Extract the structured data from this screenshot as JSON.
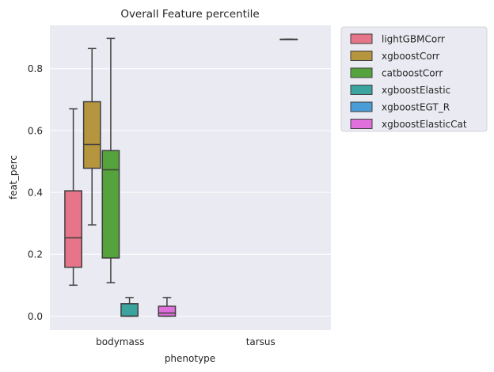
{
  "chart_data": {
    "type": "box",
    "title": "Overall Feature percentile",
    "xlabel": "phenotype",
    "ylabel": "feat_perc",
    "categories": [
      "bodymass",
      "tarsus"
    ],
    "ylim": [
      -0.045,
      0.94
    ],
    "yticks": [
      0.0,
      0.2,
      0.4,
      0.6,
      0.8
    ],
    "ytick_labels": [
      "0.0",
      "0.2",
      "0.4",
      "0.6",
      "0.8"
    ],
    "grid": true,
    "legend_position": "outside-upper-right",
    "series": [
      {
        "name": "lightGBMCorr",
        "color": "#e6758a",
        "boxes": [
          {
            "category": "bodymass",
            "whislo": 0.1,
            "q1": 0.158,
            "median": 0.253,
            "q3": 0.405,
            "whishi": 0.67
          },
          null
        ]
      },
      {
        "name": "xgboostCorr",
        "color": "#b5953e",
        "boxes": [
          {
            "category": "bodymass",
            "whislo": 0.295,
            "q1": 0.478,
            "median": 0.555,
            "q3": 0.693,
            "whishi": 0.865
          },
          null
        ]
      },
      {
        "name": "catboostCorr",
        "color": "#55a33c",
        "boxes": [
          {
            "category": "bodymass",
            "whislo": 0.108,
            "q1": 0.188,
            "median": 0.473,
            "q3": 0.535,
            "whishi": 0.898
          },
          null
        ]
      },
      {
        "name": "xgboostElastic",
        "color": "#3ba49e",
        "boxes": [
          {
            "category": "bodymass",
            "whislo": 0.0,
            "q1": 0.0,
            "median": 0.0,
            "q3": 0.04,
            "whishi": 0.06
          },
          null
        ]
      },
      {
        "name": "xgboostEGT_R",
        "color": "#4a9cd6",
        "boxes": [
          null,
          {
            "category": "tarsus",
            "whislo": 0.895,
            "q1": 0.895,
            "median": 0.895,
            "q3": 0.895,
            "whishi": 0.895
          }
        ]
      },
      {
        "name": "xgboostElasticCat",
        "color": "#e070dc",
        "boxes": [
          {
            "category": "bodymass",
            "whislo": 0.0,
            "q1": 0.0,
            "median": 0.01,
            "q3": 0.032,
            "whishi": 0.06
          },
          null
        ]
      }
    ]
  }
}
